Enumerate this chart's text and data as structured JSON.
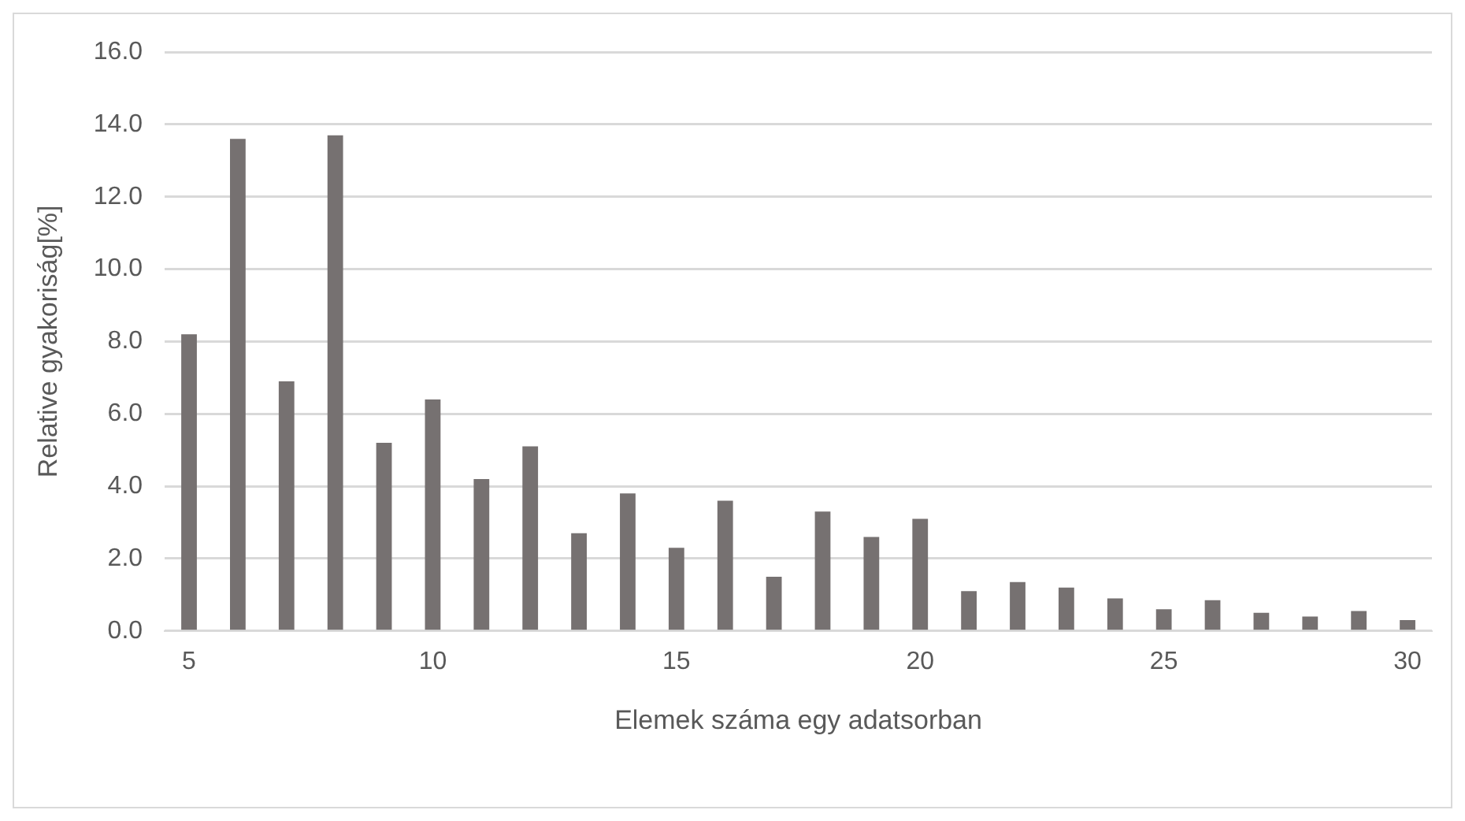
{
  "chart_data": {
    "type": "bar",
    "xlabel": "Elemek száma egy adatsorban",
    "ylabel": "Relative gyakoriság[%]",
    "categories": [
      "5",
      null,
      null,
      null,
      null,
      "10",
      null,
      null,
      null,
      null,
      "15",
      null,
      null,
      null,
      null,
      "20",
      null,
      null,
      null,
      null,
      "25",
      null,
      null,
      null,
      null,
      "30"
    ],
    "values": [
      8.2,
      13.6,
      6.9,
      13.7,
      5.2,
      6.4,
      4.2,
      5.1,
      2.7,
      3.8,
      2.3,
      3.6,
      1.5,
      3.3,
      2.6,
      3.1,
      1.1,
      1.35,
      1.2,
      0.9,
      0.6,
      0.85,
      0.5,
      0.4,
      0.55,
      0.3
    ],
    "color": "#767171",
    "ylim": [
      0,
      16
    ],
    "yticks": [
      {
        "value": 0,
        "label": "0.0"
      },
      {
        "value": 2,
        "label": "2.0"
      },
      {
        "value": 4,
        "label": "4.0"
      },
      {
        "value": 6,
        "label": "6.0"
      },
      {
        "value": 8,
        "label": "8.0"
      },
      {
        "value": 10,
        "label": "10.0"
      },
      {
        "value": 12,
        "label": "12.0"
      },
      {
        "value": 14,
        "label": "14.0"
      },
      {
        "value": 16,
        "label": "16.0"
      }
    ],
    "grid": "y",
    "legend": false
  }
}
